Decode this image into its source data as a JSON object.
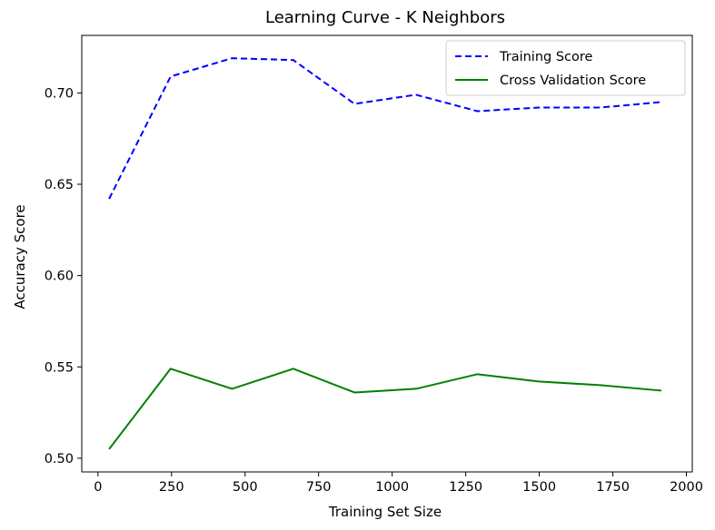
{
  "chart_data": {
    "type": "line",
    "title": "Learning Curve - K Neighbors",
    "xlabel": "Training Set Size",
    "ylabel": "Accuracy Score",
    "x": [
      38,
      247,
      456,
      664,
      872,
      1081,
      1290,
      1498,
      1707,
      1915
    ],
    "xlim": [
      -55,
      2020
    ],
    "ylim": [
      0.4925,
      0.7315
    ],
    "xticks": [
      0,
      250,
      500,
      750,
      1000,
      1250,
      1500,
      1750,
      2000
    ],
    "yticks": [
      0.5,
      0.55,
      0.6,
      0.65,
      0.7
    ],
    "xtick_labels": [
      "0",
      "250",
      "500",
      "750",
      "1000",
      "1250",
      "1500",
      "1750",
      "2000"
    ],
    "ytick_labels": [
      "0.50",
      "0.55",
      "0.60",
      "0.65",
      "0.70"
    ],
    "grid": false,
    "legend_position": "upper right",
    "series": [
      {
        "name": "Training Score",
        "color": "#0000ff",
        "style": "dashed",
        "values": [
          0.642,
          0.709,
          0.719,
          0.718,
          0.694,
          0.699,
          0.69,
          0.692,
          0.692,
          0.695
        ]
      },
      {
        "name": "Cross Validation Score",
        "color": "#008000",
        "style": "solid",
        "values": [
          0.505,
          0.549,
          0.538,
          0.549,
          0.536,
          0.538,
          0.546,
          0.542,
          0.54,
          0.537
        ]
      }
    ]
  }
}
